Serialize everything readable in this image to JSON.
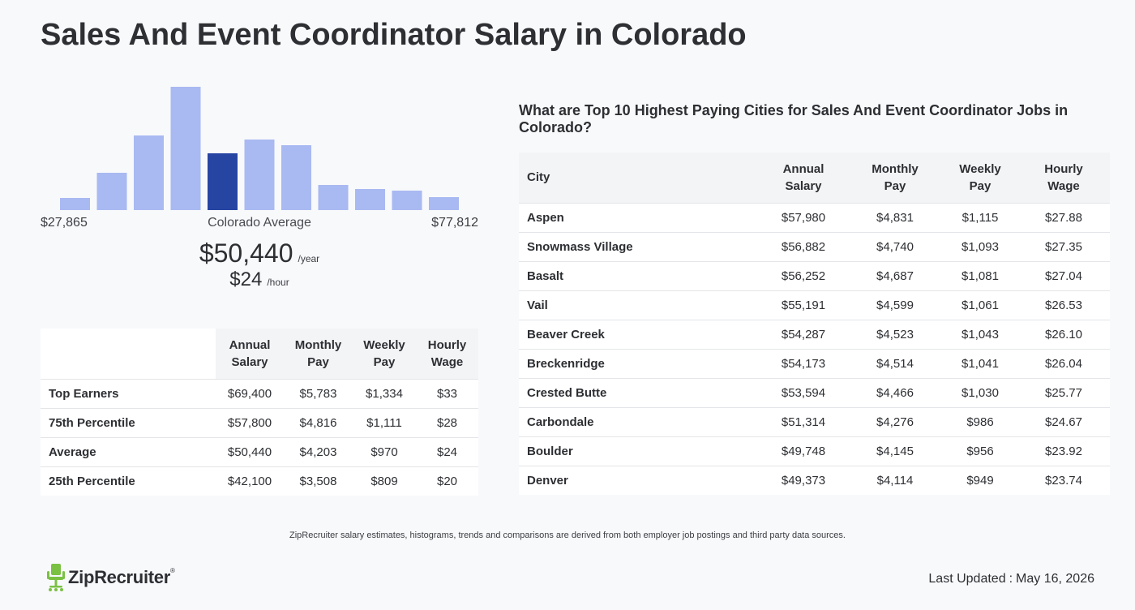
{
  "page": {
    "title": "Sales And Event Coordinator Salary in Colorado"
  },
  "histogram": {
    "range_min": "$27,865",
    "range_max": "$77,812",
    "average_label": "Colorado Average",
    "bar_heights": [
      15,
      46,
      92,
      152,
      70,
      87,
      80,
      31,
      26,
      24,
      16
    ],
    "highlight_index": 4,
    "bar_color": "#a9b9f2",
    "highlight_color": "#2644a2"
  },
  "average": {
    "annual": "$50,440",
    "annual_unit": "/year",
    "hourly": "$24",
    "hourly_unit": "/hour"
  },
  "percentile_table": {
    "headers": {
      "annual_1": "Annual",
      "annual_2": "Salary",
      "monthly_1": "Monthly",
      "monthly_2": "Pay",
      "weekly_1": "Weekly",
      "weekly_2": "Pay",
      "hourly_1": "Hourly",
      "hourly_2": "Wage"
    },
    "rows": [
      {
        "label": "Top Earners",
        "annual": "$69,400",
        "monthly": "$5,783",
        "weekly": "$1,334",
        "hourly": "$33"
      },
      {
        "label": "75th Percentile",
        "annual": "$57,800",
        "monthly": "$4,816",
        "weekly": "$1,111",
        "hourly": "$28"
      },
      {
        "label": "Average",
        "annual": "$50,440",
        "monthly": "$4,203",
        "weekly": "$970",
        "hourly": "$24"
      },
      {
        "label": "25th Percentile",
        "annual": "$42,100",
        "monthly": "$3,508",
        "weekly": "$809",
        "hourly": "$20"
      }
    ]
  },
  "city_section": {
    "heading": "What are Top 10 Highest Paying Cities for Sales And Event Coordinator Jobs in Colorado?",
    "headers": {
      "city": "City",
      "annual_1": "Annual",
      "annual_2": "Salary",
      "monthly_1": "Monthly",
      "monthly_2": "Pay",
      "weekly_1": "Weekly",
      "weekly_2": "Pay",
      "hourly_1": "Hourly",
      "hourly_2": "Wage"
    },
    "rows": [
      {
        "city": "Aspen",
        "annual": "$57,980",
        "monthly": "$4,831",
        "weekly": "$1,115",
        "hourly": "$27.88"
      },
      {
        "city": "Snowmass Village",
        "annual": "$56,882",
        "monthly": "$4,740",
        "weekly": "$1,093",
        "hourly": "$27.35"
      },
      {
        "city": "Basalt",
        "annual": "$56,252",
        "monthly": "$4,687",
        "weekly": "$1,081",
        "hourly": "$27.04"
      },
      {
        "city": "Vail",
        "annual": "$55,191",
        "monthly": "$4,599",
        "weekly": "$1,061",
        "hourly": "$26.53"
      },
      {
        "city": "Beaver Creek",
        "annual": "$54,287",
        "monthly": "$4,523",
        "weekly": "$1,043",
        "hourly": "$26.10"
      },
      {
        "city": "Breckenridge",
        "annual": "$54,173",
        "monthly": "$4,514",
        "weekly": "$1,041",
        "hourly": "$26.04"
      },
      {
        "city": "Crested Butte",
        "annual": "$53,594",
        "monthly": "$4,466",
        "weekly": "$1,030",
        "hourly": "$25.77"
      },
      {
        "city": "Carbondale",
        "annual": "$51,314",
        "monthly": "$4,276",
        "weekly": "$986",
        "hourly": "$24.67"
      },
      {
        "city": "Boulder",
        "annual": "$49,748",
        "monthly": "$4,145",
        "weekly": "$956",
        "hourly": "$23.92"
      },
      {
        "city": "Denver",
        "annual": "$49,373",
        "monthly": "$4,114",
        "weekly": "$949",
        "hourly": "$23.74"
      }
    ]
  },
  "footer": {
    "disclaimer": "ZipRecruiter salary estimates, histograms, trends and comparisons are derived from both employer job postings and third party data sources.",
    "logo_text": "ZipRecruiter",
    "logo_mark": "®",
    "logo_color": "#7ac143",
    "last_updated_label": "Last Updated",
    "last_updated_sep": ":",
    "last_updated_date": "May 16, 2026"
  }
}
